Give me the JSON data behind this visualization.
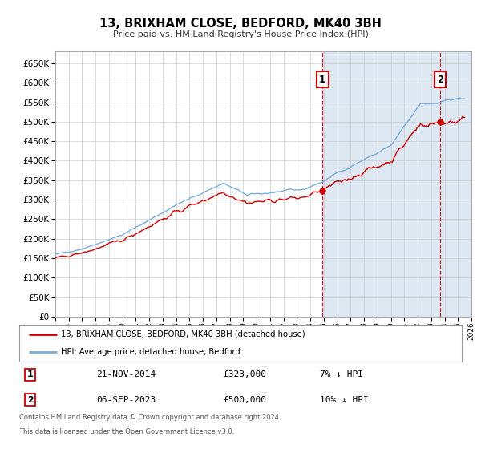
{
  "title": "13, BRIXHAM CLOSE, BEDFORD, MK40 3BH",
  "subtitle": "Price paid vs. HM Land Registry's House Price Index (HPI)",
  "legend_line1": "13, BRIXHAM CLOSE, BEDFORD, MK40 3BH (detached house)",
  "legend_line2": "HPI: Average price, detached house, Bedford",
  "annotation1_date": "21-NOV-2014",
  "annotation1_price": "£323,000",
  "annotation1_hpi": "7% ↓ HPI",
  "annotation2_date": "06-SEP-2023",
  "annotation2_price": "£500,000",
  "annotation2_hpi": "10% ↓ HPI",
  "footer1": "Contains HM Land Registry data © Crown copyright and database right 2024.",
  "footer2": "This data is licensed under the Open Government Licence v3.0.",
  "sale1_year": 2014.9,
  "sale1_value": 323000,
  "sale2_year": 2023.67,
  "sale2_value": 500000,
  "price_line_color": "#cc0000",
  "hpi_line_color": "#7aaddc",
  "shaded_region_color": "#dde8f3",
  "grid_color": "#cccccc",
  "background_color": "#ffffff",
  "annotation_box_color": "#cc0000",
  "ylim_max": 680000,
  "ylim_min": 0,
  "xlim_min": 1995,
  "xlim_max": 2026
}
